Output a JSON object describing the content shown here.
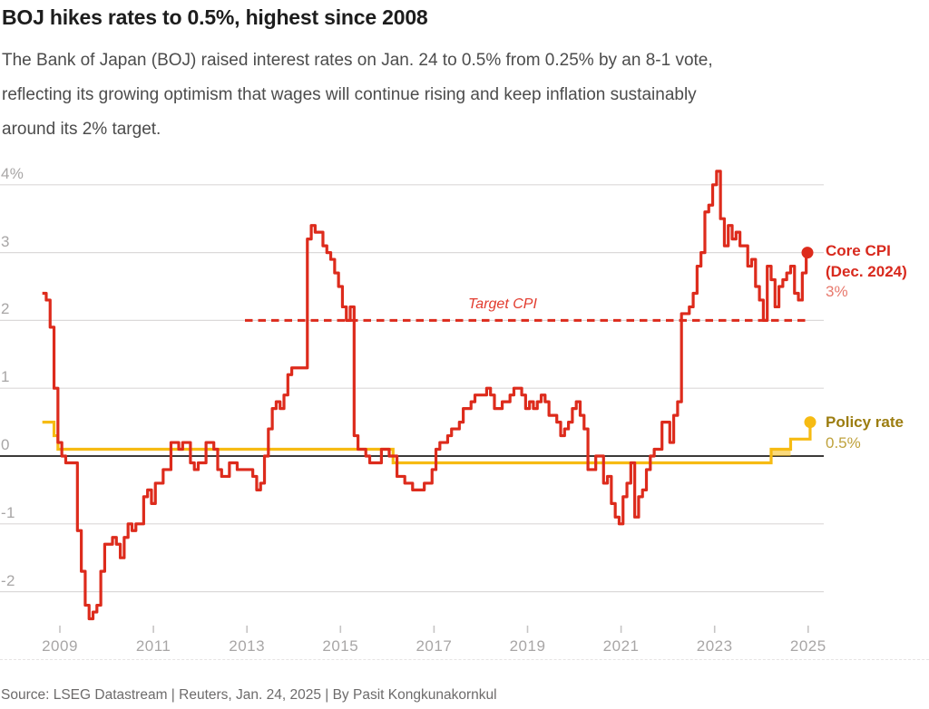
{
  "title": "BOJ hikes rates to 0.5%, highest since 2008",
  "subtitle_lines": [
    "The Bank of Japan (BOJ) raised interest rates on Jan. 24 to 0.5% from 0.25% by an 8-1 vote,",
    "reflecting its growing optimism that wages will continue rising and keep inflation sustainably",
    "around its 2% target."
  ],
  "footer": "Source: LSEG Datastream | Reuters, Jan. 24, 2025 | By Pasit Kongkunakornkul",
  "colors": {
    "cpi_red": "#dd2b1c",
    "cpi_value_red_light": "#e8796d",
    "target_red": "#dd2b1c",
    "policy_yellow": "#f6bb13",
    "policy_label_gold_dark": "#9c7d10",
    "policy_value_gold_light": "#bfa23c",
    "grid": "#dbd9d9",
    "zero_line": "#3c3a38",
    "tick": "#c6c4c4",
    "axis_text": "#a8a6a6",
    "title_text": "#1d1d1d",
    "subtitle_text": "#4c4c4c",
    "footer_text": "#6d6b6b"
  },
  "chart_data": {
    "type": "line",
    "target_label": "Target CPI",
    "target_value": 2,
    "y_axis": {
      "ticks": [
        4,
        3,
        2,
        1,
        0,
        -1,
        -2
      ],
      "labels": [
        "4%",
        "3",
        "2",
        "1",
        "0",
        "-1",
        "-2"
      ],
      "range": [
        -2.7,
        4.3
      ]
    },
    "x_axis": {
      "tick_years": [
        2009,
        2011,
        2013,
        2015,
        2017,
        2019,
        2021,
        2023,
        2025
      ],
      "range": [
        "2008-08",
        "2025-02"
      ]
    },
    "series": [
      {
        "name": "core_cpi",
        "label": "Core CPI",
        "sublabel": "(Dec. 2024)",
        "value_label": "3%",
        "color": "#dd2b1c",
        "frequency": "monthly",
        "start": "2008-08",
        "end": "2024-12",
        "values": [
          2.4,
          2.3,
          1.9,
          1.0,
          0.2,
          0.0,
          -0.1,
          -0.1,
          -0.1,
          -1.1,
          -1.7,
          -2.2,
          -2.4,
          -2.3,
          -2.2,
          -1.7,
          -1.3,
          -1.3,
          -1.2,
          -1.3,
          -1.5,
          -1.2,
          -1.0,
          -1.1,
          -1.0,
          -1.0,
          -0.6,
          -0.5,
          -0.7,
          -0.4,
          -0.4,
          -0.2,
          -0.2,
          0.2,
          0.2,
          0.1,
          0.2,
          0.2,
          -0.1,
          -0.2,
          -0.1,
          -0.1,
          0.2,
          0.2,
          0.1,
          -0.2,
          -0.3,
          -0.3,
          -0.1,
          -0.1,
          -0.2,
          -0.2,
          -0.2,
          -0.2,
          -0.3,
          -0.5,
          -0.4,
          0.0,
          0.4,
          0.7,
          0.8,
          0.7,
          0.9,
          1.2,
          1.3,
          1.3,
          1.3,
          1.3,
          3.2,
          3.4,
          3.3,
          3.3,
          3.1,
          3.0,
          2.9,
          2.7,
          2.5,
          2.2,
          2.0,
          2.2,
          0.3,
          0.1,
          0.1,
          0.0,
          -0.1,
          -0.1,
          -0.1,
          0.1,
          0.1,
          0.0,
          0.0,
          -0.3,
          -0.3,
          -0.4,
          -0.4,
          -0.5,
          -0.5,
          -0.5,
          -0.4,
          -0.4,
          -0.2,
          0.1,
          0.2,
          0.2,
          0.3,
          0.4,
          0.4,
          0.5,
          0.7,
          0.7,
          0.8,
          0.9,
          0.9,
          0.9,
          1.0,
          0.9,
          0.7,
          0.7,
          0.8,
          0.8,
          0.9,
          1.0,
          1.0,
          0.9,
          0.7,
          0.8,
          0.7,
          0.8,
          0.9,
          0.8,
          0.6,
          0.6,
          0.5,
          0.3,
          0.4,
          0.5,
          0.7,
          0.8,
          0.6,
          0.4,
          -0.2,
          -0.2,
          0.0,
          0.0,
          -0.4,
          -0.3,
          -0.7,
          -0.9,
          -1.0,
          -0.6,
          -0.4,
          -0.1,
          -0.9,
          -0.6,
          -0.5,
          -0.2,
          0.0,
          0.1,
          0.1,
          0.5,
          0.5,
          0.2,
          0.6,
          0.8,
          2.1,
          2.1,
          2.2,
          2.4,
          2.8,
          3.0,
          3.6,
          3.7,
          4.0,
          4.2,
          3.5,
          3.1,
          3.4,
          3.2,
          3.3,
          3.1,
          3.1,
          2.8,
          2.9,
          2.5,
          2.3,
          2.0,
          2.8,
          2.6,
          2.2,
          2.5,
          2.6,
          2.7,
          2.8,
          2.4,
          2.3,
          2.7,
          3.0
        ]
      },
      {
        "name": "policy_rate",
        "label": "Policy rate",
        "value_label": "0.5%",
        "color": "#f6bb13",
        "steps": [
          [
            "2008-08",
            0.5
          ],
          [
            "2008-11",
            0.3
          ],
          [
            "2008-12",
            0.1
          ],
          [
            "2016-02",
            -0.1
          ],
          [
            "2024-03",
            0.1
          ],
          [
            "2024-08",
            0.25
          ],
          [
            "2025-01",
            0.5
          ]
        ],
        "range_band": {
          "from": "2024-03",
          "to": "2024-08",
          "low": 0,
          "high": 0.1
        }
      }
    ]
  }
}
